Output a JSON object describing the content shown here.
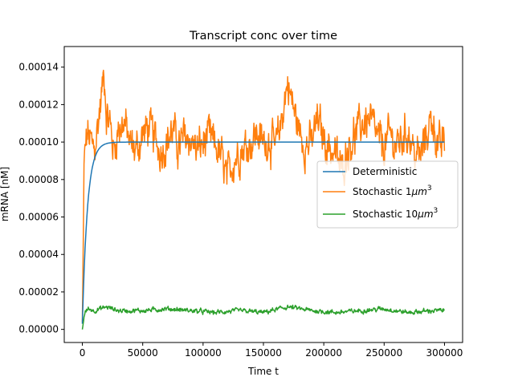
{
  "chart_data": {
    "type": "line",
    "title": "Transcript conc over time",
    "xlabel": "Time t",
    "ylabel": "mRNA [nM]",
    "xlim": [
      -15000,
      315000
    ],
    "ylim": [
      -7e-06,
      0.000151
    ],
    "xticks": [
      0,
      50000,
      100000,
      150000,
      200000,
      250000,
      300000
    ],
    "xtick_labels": [
      "0",
      "50000",
      "100000",
      "150000",
      "200000",
      "250000",
      "300000"
    ],
    "yticks": [
      0.0,
      2e-05,
      4e-05,
      6e-05,
      8e-05,
      0.0001,
      0.00012,
      0.00014
    ],
    "ytick_labels": [
      "0.00000",
      "0.00002",
      "0.00004",
      "0.00006",
      "0.00008",
      "0.00010",
      "0.00012",
      "0.00014"
    ],
    "grid": false,
    "legend_position": "center-right",
    "series": [
      {
        "name": "Deterministic",
        "color": "#1f77b4",
        "kind": "saturating",
        "x_start": 0,
        "x_end": 300000,
        "y_start": 3e-06,
        "y_end": 0.0001,
        "tau": 4200
      },
      {
        "name": "Stochastic 1μm³",
        "legend_text": "Stochastic 1",
        "legend_sup_text": "3",
        "color": "#ff7f0e",
        "kind": "noisy",
        "x": [
          0,
          1500,
          4000,
          7000,
          10000,
          13000,
          16000,
          18000,
          20000,
          23000,
          26000,
          30000,
          35000,
          40000,
          45000,
          50000,
          55000,
          60000,
          65000,
          70000,
          75000,
          80000,
          85000,
          90000,
          95000,
          100000,
          105000,
          110000,
          115000,
          120000,
          125000,
          130000,
          135000,
          140000,
          145000,
          150000,
          155000,
          160000,
          165000,
          170000,
          175000,
          180000,
          185000,
          190000,
          195000,
          200000,
          205000,
          210000,
          215000,
          220000,
          225000,
          230000,
          235000,
          240000,
          245000,
          250000,
          255000,
          260000,
          265000,
          270000,
          275000,
          280000,
          285000,
          290000,
          295000,
          300000
        ],
        "y": [
          4e-06,
          9e-05,
          0.000105,
          0.0001,
          9.5e-05,
          0.00011,
          0.000125,
          0.000138,
          0.000115,
          0.00011,
          9.5e-05,
          0.000108,
          0.00011,
          9.8e-05,
          9.6e-05,
          0.000104,
          0.000108,
          0.000102,
          9.5e-05,
          0.000101,
          0.000106,
          9.7e-05,
          0.000103,
          0.000101,
          9.6e-05,
          9.9e-05,
          0.000103,
          9.8e-05,
          9.2e-05,
          8e-05,
          9e-05,
          9.5e-05,
          9.8e-05,
          0.0001,
          0.000105,
          9.9e-05,
          0.000102,
          9.6e-05,
          0.000112,
          0.000132,
          0.000118,
          0.000105,
          9.8e-05,
          0.0001,
          0.000112,
          0.000102,
          9.7e-05,
          9.3e-05,
          8.5e-05,
          9.8e-05,
          0.000103,
          0.000108,
          0.000112,
          0.00011,
          0.000101,
          9.8e-05,
          0.000104,
          9.8e-05,
          0.000102,
          0.000106,
          9.4e-05,
          9.2e-05,
          0.000104,
          0.000113,
          9.6e-05,
          0.0001
        ],
        "noise": 7.5e-06
      },
      {
        "name": "Stochastic 10μm³",
        "legend_text": "Stochastic 10",
        "legend_sup_text": "3",
        "color": "#2ca02c",
        "kind": "noisy",
        "x": [
          0,
          2000,
          5000,
          10000,
          20000,
          30000,
          50000,
          70000,
          90000,
          110000,
          130000,
          150000,
          170000,
          190000,
          210000,
          230000,
          250000,
          270000,
          290000,
          300000
        ],
        "y": [
          0.0,
          9e-06,
          1.1e-05,
          1e-05,
          1.2e-05,
          1e-05,
          1e-05,
          1.1e-05,
          1e-05,
          9e-06,
          1e-05,
          9e-06,
          1.2e-05,
          1e-05,
          9e-06,
          1e-05,
          1.1e-05,
          9e-06,
          1e-05,
          1e-05
        ],
        "noise": 9e-07
      }
    ]
  }
}
